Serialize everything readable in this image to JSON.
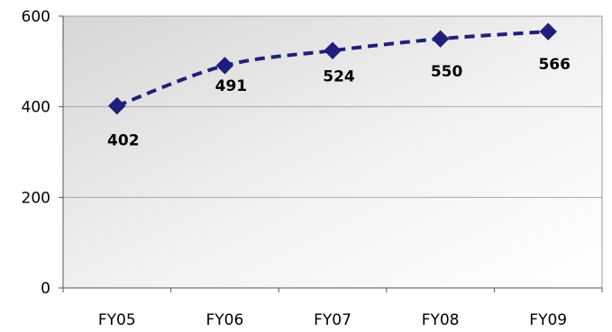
{
  "chart_data": {
    "type": "line",
    "title": "",
    "xlabel": "",
    "ylabel": "",
    "categories": [
      "FY05",
      "FY06",
      "FY07",
      "FY08",
      "FY09"
    ],
    "series": [
      {
        "values": [
          402,
          491,
          524,
          550,
          566
        ],
        "color": "#1f1f7a",
        "line_style": "dashed",
        "marker": "diamond"
      }
    ],
    "data_labels": [
      "402",
      "491",
      "524",
      "550",
      "566"
    ],
    "y_ticks": [
      "0",
      "200",
      "400",
      "600"
    ],
    "ylim": [
      0,
      600
    ],
    "grid": true,
    "background": "gradient-gray",
    "legend": "none"
  }
}
